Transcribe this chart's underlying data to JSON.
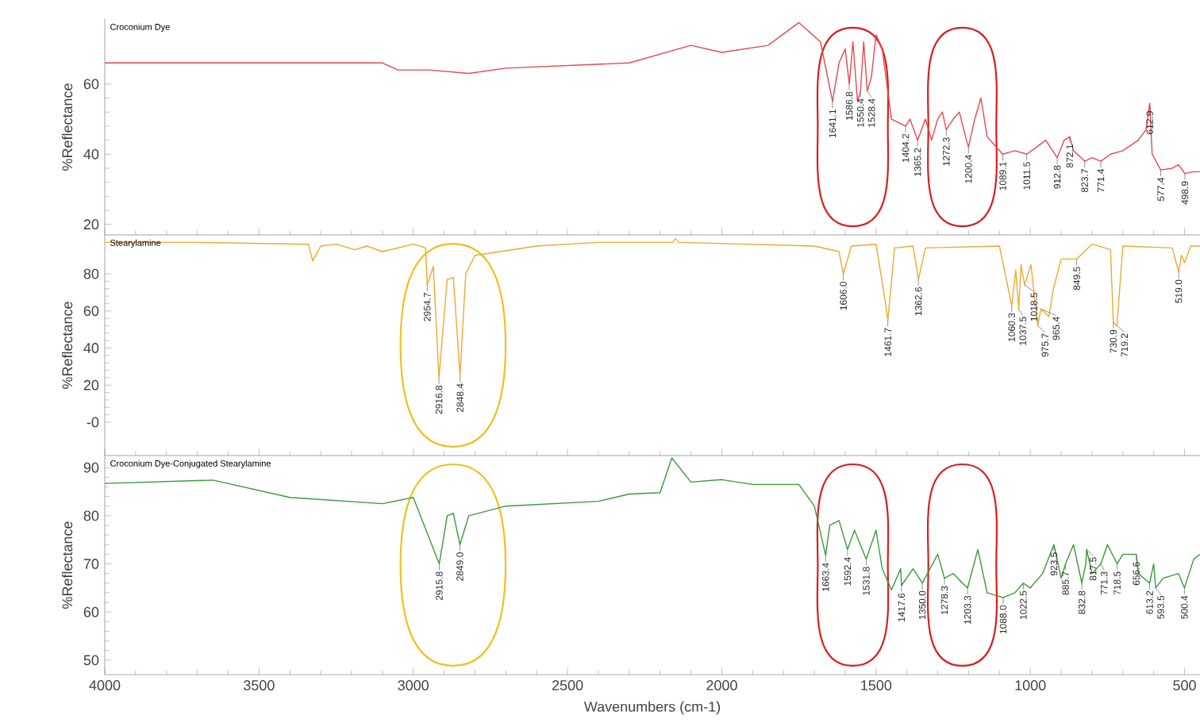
{
  "chart_data": [
    {
      "type": "line",
      "ylabel": "%Reflectance",
      "xlim": [
        4000,
        450
      ],
      "ylim": [
        17,
        78.5
      ],
      "xticks": [
        4000,
        3500,
        3000,
        2500,
        2000,
        1500,
        1000,
        500
      ],
      "yticks": [
        20,
        40,
        60
      ],
      "tick_labels": "y",
      "series": [
        {
          "name": "Croconium Dye",
          "color": "#e8474f",
          "x": [
            4000,
            3500,
            3100,
            3050,
            2950,
            2820,
            2700,
            2300,
            2100,
            2000,
            1850,
            1750,
            1680,
            1641.1,
            1620,
            1600,
            1586.8,
            1575,
            1560,
            1550.4,
            1540,
            1528.4,
            1515,
            1500,
            1480,
            1450,
            1404.2,
            1390,
            1365.2,
            1340,
            1320,
            1300,
            1285,
            1272.3,
            1250,
            1230,
            1210,
            1200.4,
            1180,
            1160,
            1140,
            1110,
            1089.1,
            1050,
            1011.5,
            980,
            950,
            912.8,
            890,
            872.1,
            860,
            823.7,
            800,
            771.4,
            740,
            700,
            650,
            625,
            612.9,
            605,
            577.4,
            540,
            520,
            498.9,
            470,
            450
          ],
          "values": [
            66,
            66,
            66,
            64,
            64,
            63,
            64.5,
            66,
            71,
            69,
            71,
            77.5,
            72,
            55,
            66,
            70,
            60,
            72,
            55,
            58,
            72,
            58,
            62,
            74,
            70,
            50,
            48,
            50,
            44,
            50,
            44,
            50,
            52,
            47,
            50,
            52,
            45,
            42,
            50,
            56,
            45,
            42,
            40,
            41,
            40,
            42,
            44,
            39,
            44,
            45,
            41,
            38,
            39,
            38,
            40,
            41,
            44,
            47,
            54.5,
            40,
            35.5,
            36,
            37,
            34.5,
            35,
            35
          ]
        }
      ],
      "annotations": [
        {
          "text": "1641.1",
          "x": 1641.1,
          "y": 55
        },
        {
          "text": "1586.8",
          "x": 1586.8,
          "y": 60
        },
        {
          "text": "1550.4",
          "x": 1550.4,
          "y": 58
        },
        {
          "text": "1528.4",
          "x": 1528.4,
          "y": 58
        },
        {
          "text": "1404.2",
          "x": 1404.2,
          "y": 48
        },
        {
          "text": "1365.2",
          "x": 1365.2,
          "y": 44
        },
        {
          "text": "1272.3",
          "x": 1272.3,
          "y": 47
        },
        {
          "text": "1200.4",
          "x": 1200.4,
          "y": 42
        },
        {
          "text": "1089.1",
          "x": 1089.1,
          "y": 40
        },
        {
          "text": "1011.5",
          "x": 1011.5,
          "y": 40
        },
        {
          "text": "912.8",
          "x": 912.8,
          "y": 39
        },
        {
          "text": "872.1",
          "x": 872.1,
          "y": 45
        },
        {
          "text": "823.7",
          "x": 823.7,
          "y": 38
        },
        {
          "text": "771.4",
          "x": 771.4,
          "y": 38
        },
        {
          "text": "612.9",
          "x": 612.9,
          "y": 54.5
        },
        {
          "text": "577.4",
          "x": 577.4,
          "y": 35.5
        },
        {
          "text": "498.9",
          "x": 498.9,
          "y": 34.5
        }
      ]
    },
    {
      "type": "line",
      "ylabel": "%Reflectance",
      "xlim": [
        4000,
        450
      ],
      "ylim": [
        -18,
        101
      ],
      "xticks": [
        4000,
        3500,
        3000,
        2500,
        2000,
        1500,
        1000,
        500
      ],
      "yticks": [
        {
          "value": 0,
          "label": "-0"
        },
        20,
        40,
        60,
        80
      ],
      "tick_labels": "y",
      "series": [
        {
          "name": "Stearylamine",
          "color": "#f0a830",
          "x": [
            4000,
            3700,
            3340,
            3326,
            3300,
            3250,
            3190,
            3150,
            3100,
            3000,
            2960,
            2954.7,
            2935,
            2916.8,
            2890,
            2870,
            2848.4,
            2830,
            2800,
            2600,
            2400,
            2160,
            2150,
            2140,
            1700,
            1620,
            1606.0,
            1580,
            1500,
            1470,
            1461.7,
            1440,
            1380,
            1362.6,
            1340,
            1100,
            1060.3,
            1047,
            1037.5,
            1030,
            1018.5,
            998,
            975.7,
            965.4,
            940,
            925,
            900,
            849.5,
            800,
            740,
            730.9,
            719.2,
            700,
            540,
            519.0,
            510,
            500,
            480,
            450
          ],
          "values": [
            97,
            97,
            96,
            87,
            95,
            96,
            93,
            95,
            92,
            96,
            94,
            74,
            84,
            24,
            77,
            78,
            25,
            80,
            90,
            95,
            97,
            97,
            99,
            97,
            95,
            92,
            80,
            95,
            96,
            65,
            55,
            94,
            95,
            77,
            94,
            95,
            63,
            82,
            61,
            85,
            74,
            85,
            52,
            61,
            57,
            72,
            88,
            88,
            96,
            93,
            54,
            52,
            95,
            94,
            81,
            90,
            86,
            95,
            95
          ]
        }
      ],
      "annotations": [
        {
          "text": "2954.7",
          "x": 2954.7,
          "y": 74
        },
        {
          "text": "2916.8",
          "x": 2916.8,
          "y": 24
        },
        {
          "text": "2848.4",
          "x": 2848.4,
          "y": 25
        },
        {
          "text": "1606.0",
          "x": 1606.0,
          "y": 80
        },
        {
          "text": "1461.7",
          "x": 1461.7,
          "y": 55
        },
        {
          "text": "1362.6",
          "x": 1362.6,
          "y": 77
        },
        {
          "text": "1060.3",
          "x": 1060.3,
          "y": 63
        },
        {
          "text": "1037.5",
          "x": 1037.5,
          "y": 61
        },
        {
          "text": "1018.5",
          "x": 1018.5,
          "y": 74
        },
        {
          "text": "975.7",
          "x": 975.7,
          "y": 52
        },
        {
          "text": "965.4",
          "x": 965.4,
          "y": 61
        },
        {
          "text": "849.5",
          "x": 849.5,
          "y": 88
        },
        {
          "text": "730.9",
          "x": 730.9,
          "y": 54
        },
        {
          "text": "719.2",
          "x": 719.2,
          "y": 52
        },
        {
          "text": "519.0",
          "x": 519.0,
          "y": 81
        }
      ]
    },
    {
      "type": "line",
      "ylabel": "%Reflectance",
      "xlabel": "Wavenumbers (cm-1)",
      "xlim": [
        4000,
        450
      ],
      "ylim": [
        47,
        92.5
      ],
      "xticks": [
        4000,
        3500,
        3000,
        2500,
        2000,
        1500,
        1000,
        500
      ],
      "yticks": [
        50,
        60,
        70,
        80,
        90
      ],
      "series": [
        {
          "name": "Croconium Dye-Conjugated Stearylamine",
          "color": "#3a9a3a",
          "x": [
            4000,
            3650,
            3400,
            3100,
            3000,
            2915.8,
            2890,
            2870,
            2849.0,
            2820,
            2700,
            2400,
            2300,
            2200,
            2162,
            2100,
            2000,
            1900,
            1750,
            1700,
            1663.4,
            1650,
            1620,
            1592.4,
            1570,
            1531.8,
            1500,
            1480,
            1450,
            1420,
            1417.6,
            1380,
            1350.0,
            1300,
            1278.3,
            1250,
            1220,
            1203.3,
            1170,
            1140,
            1088.0,
            1050,
            1022.5,
            1000,
            960,
            923.5,
            900,
            885.7,
            860,
            832.8,
            820,
            817.5,
            800,
            771.3,
            750,
            718.5,
            700,
            656.6,
            650,
            613.2,
            600,
            593.5,
            570,
            520,
            500.4,
            470,
            450
          ],
          "values": [
            86.7,
            87.4,
            83.8,
            82.5,
            83.8,
            70,
            80,
            80.5,
            74,
            80,
            82,
            83,
            84.5,
            84.8,
            92,
            87,
            87.5,
            86.5,
            86.5,
            82,
            71.8,
            78,
            79,
            73,
            77,
            71,
            77,
            69,
            64.6,
            69,
            65.5,
            69,
            66,
            72,
            67,
            68,
            66,
            65,
            73,
            64,
            63,
            64,
            66,
            65,
            68,
            74,
            67,
            70,
            74,
            66,
            70,
            73,
            68,
            70,
            74,
            70,
            72,
            72,
            68,
            66,
            70,
            65,
            67,
            68,
            65,
            71,
            72
          ]
        }
      ],
      "annotations": [
        {
          "text": "2915.8",
          "x": 2915.8,
          "y": 70
        },
        {
          "text": "2849.0",
          "x": 2849.0,
          "y": 74
        },
        {
          "text": "1663.4",
          "x": 1663.4,
          "y": 71.8
        },
        {
          "text": "1592.4",
          "x": 1592.4,
          "y": 73
        },
        {
          "text": "1531.8",
          "x": 1531.8,
          "y": 71
        },
        {
          "text": "1417.6",
          "x": 1417.6,
          "y": 65.5
        },
        {
          "text": "1350.0",
          "x": 1350.0,
          "y": 66
        },
        {
          "text": "1278.3",
          "x": 1278.3,
          "y": 67
        },
        {
          "text": "1203.3",
          "x": 1203.3,
          "y": 65
        },
        {
          "text": "1088.0",
          "x": 1088.0,
          "y": 63
        },
        {
          "text": "1022.5",
          "x": 1022.5,
          "y": 66
        },
        {
          "text": "923.5",
          "x": 923.5,
          "y": 74
        },
        {
          "text": "885.7",
          "x": 885.7,
          "y": 70
        },
        {
          "text": "832.8",
          "x": 832.8,
          "y": 66
        },
        {
          "text": "817.5",
          "x": 817.5,
          "y": 73
        },
        {
          "text": "771.3",
          "x": 771.3,
          "y": 70
        },
        {
          "text": "718.5",
          "x": 718.5,
          "y": 70
        },
        {
          "text": "656.6",
          "x": 656.6,
          "y": 72
        },
        {
          "text": "613.2",
          "x": 613.2,
          "y": 66
        },
        {
          "text": "593.5",
          "x": 593.5,
          "y": 65
        },
        {
          "text": "500.4",
          "x": 500.4,
          "y": 65
        }
      ]
    }
  ]
}
